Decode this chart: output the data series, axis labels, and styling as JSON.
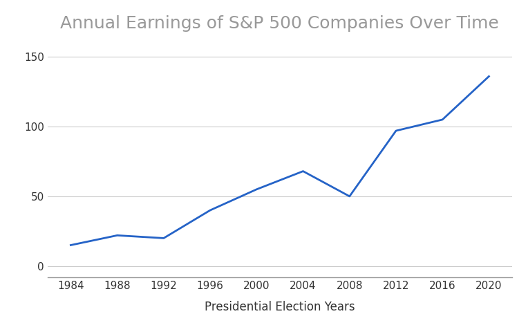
{
  "title": "Annual Earnings of S&P 500 Companies Over Time",
  "xlabel": "Presidential Election Years",
  "ylabel": "",
  "years": [
    1984,
    1988,
    1992,
    1996,
    2000,
    2004,
    2008,
    2012,
    2016,
    2020
  ],
  "earnings": [
    15,
    22,
    20,
    40,
    55,
    68,
    50,
    97,
    105,
    136
  ],
  "line_color": "#2563c7",
  "line_width": 2.0,
  "background_color": "#ffffff",
  "grid_color": "#cccccc",
  "title_fontsize": 18,
  "title_color": "#999999",
  "label_fontsize": 12,
  "label_color": "#333333",
  "tick_fontsize": 11,
  "tick_color": "#333333",
  "yticks": [
    0,
    50,
    100,
    150
  ],
  "xticks": [
    1984,
    1988,
    1992,
    1996,
    2000,
    2004,
    2008,
    2012,
    2016,
    2020
  ],
  "ylim": [
    -8,
    162
  ],
  "xlim": [
    1982,
    2022
  ]
}
